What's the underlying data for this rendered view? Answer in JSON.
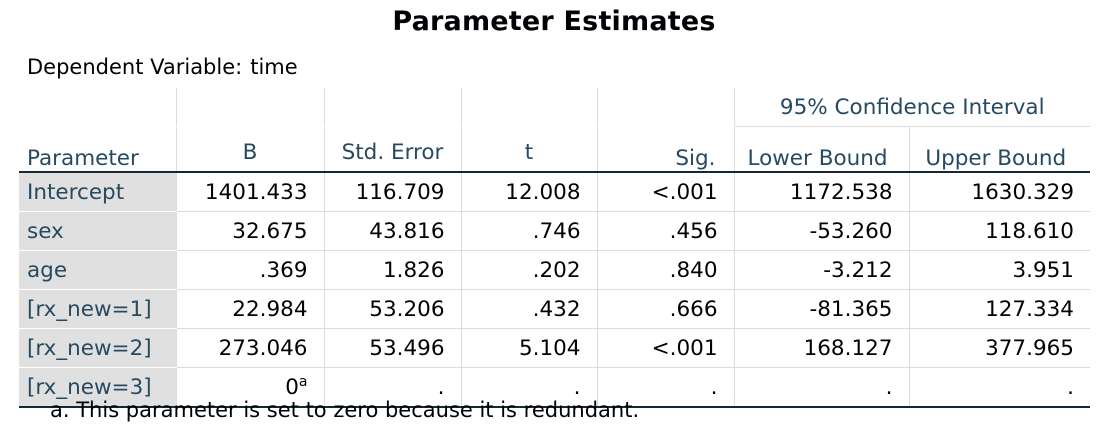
{
  "title": "Parameter Estimates",
  "dependent": {
    "label": "Dependent Variable:",
    "value": "time"
  },
  "headers": {
    "ci_group": "95% Confidence Interval",
    "parameter": "Parameter",
    "b": "B",
    "std_error": "Std. Error",
    "t": "t",
    "sig": "Sig.",
    "lower": "Lower Bound",
    "upper": "Upper Bound"
  },
  "rows": [
    {
      "param": "Intercept",
      "b": "1401.433",
      "b_sup": "",
      "se": "116.709",
      "t": "12.008",
      "sig": "<.001",
      "lower": "1172.538",
      "upper": "1630.329"
    },
    {
      "param": "sex",
      "b": "32.675",
      "b_sup": "",
      "se": "43.816",
      "t": ".746",
      "sig": ".456",
      "lower": "-53.260",
      "upper": "118.610"
    },
    {
      "param": "age",
      "b": ".369",
      "b_sup": "",
      "se": "1.826",
      "t": ".202",
      "sig": ".840",
      "lower": "-3.212",
      "upper": "3.951"
    },
    {
      "param": "[rx_new=1]",
      "b": "22.984",
      "b_sup": "",
      "se": "53.206",
      "t": ".432",
      "sig": ".666",
      "lower": "-81.365",
      "upper": "127.334"
    },
    {
      "param": "[rx_new=2]",
      "b": "273.046",
      "b_sup": "",
      "se": "53.496",
      "t": "5.104",
      "sig": "<.001",
      "lower": "168.127",
      "upper": "377.965"
    },
    {
      "param": "[rx_new=3]",
      "b": "0",
      "b_sup": "a",
      "se": ".",
      "t": ".",
      "sig": ".",
      "lower": ".",
      "upper": "."
    }
  ],
  "footnote": "a. This parameter is set to zero because it is redundant."
}
